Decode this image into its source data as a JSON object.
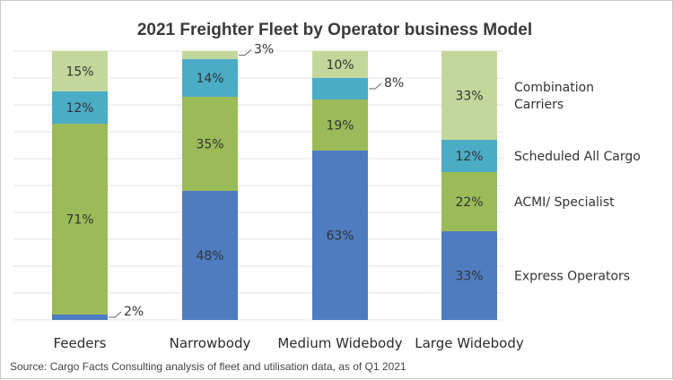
{
  "chart_data": {
    "type": "bar",
    "stacked": true,
    "normalized": true,
    "title": "2021 Freighter Fleet by Operator business Model",
    "xlabel": "",
    "ylabel": "",
    "ylim": [
      0,
      100
    ],
    "grid": true,
    "legend_position": "right",
    "categories": [
      "Feeders",
      "Narrowbody",
      "Medium Widebody",
      "Large Widebody"
    ],
    "series": [
      {
        "name": "Express Operators",
        "color": "#4e7cc1",
        "values": [
          2,
          48,
          63,
          33
        ],
        "labels": [
          "2%",
          "48%",
          "63%",
          "33%"
        ]
      },
      {
        "name": "ACMI/ Specialist",
        "color": "#9bbb59",
        "values": [
          71,
          35,
          19,
          22
        ],
        "labels": [
          "71%",
          "35%",
          "19%",
          "22%"
        ]
      },
      {
        "name": "Scheduled  All Cargo",
        "color": "#4bacc6",
        "values": [
          12,
          14,
          8,
          12
        ],
        "labels": [
          "12%",
          "14%",
          "8%",
          "12%"
        ]
      },
      {
        "name": "Combination Carriers",
        "legend_lines": [
          "Combination",
          "Carriers"
        ],
        "color": "#c3d79b",
        "values": [
          15,
          3,
          10,
          33
        ],
        "labels": [
          "15%",
          "3%",
          "10%",
          "33%"
        ]
      }
    ],
    "callouts": [
      {
        "category_index": 0,
        "series_index": 0
      },
      {
        "category_index": 1,
        "series_index": 3
      },
      {
        "category_index": 2,
        "series_index": 2
      }
    ]
  },
  "source_note": "Source: Cargo Facts Consulting analysis of fleet and utilisation data, as of Q1 2021"
}
